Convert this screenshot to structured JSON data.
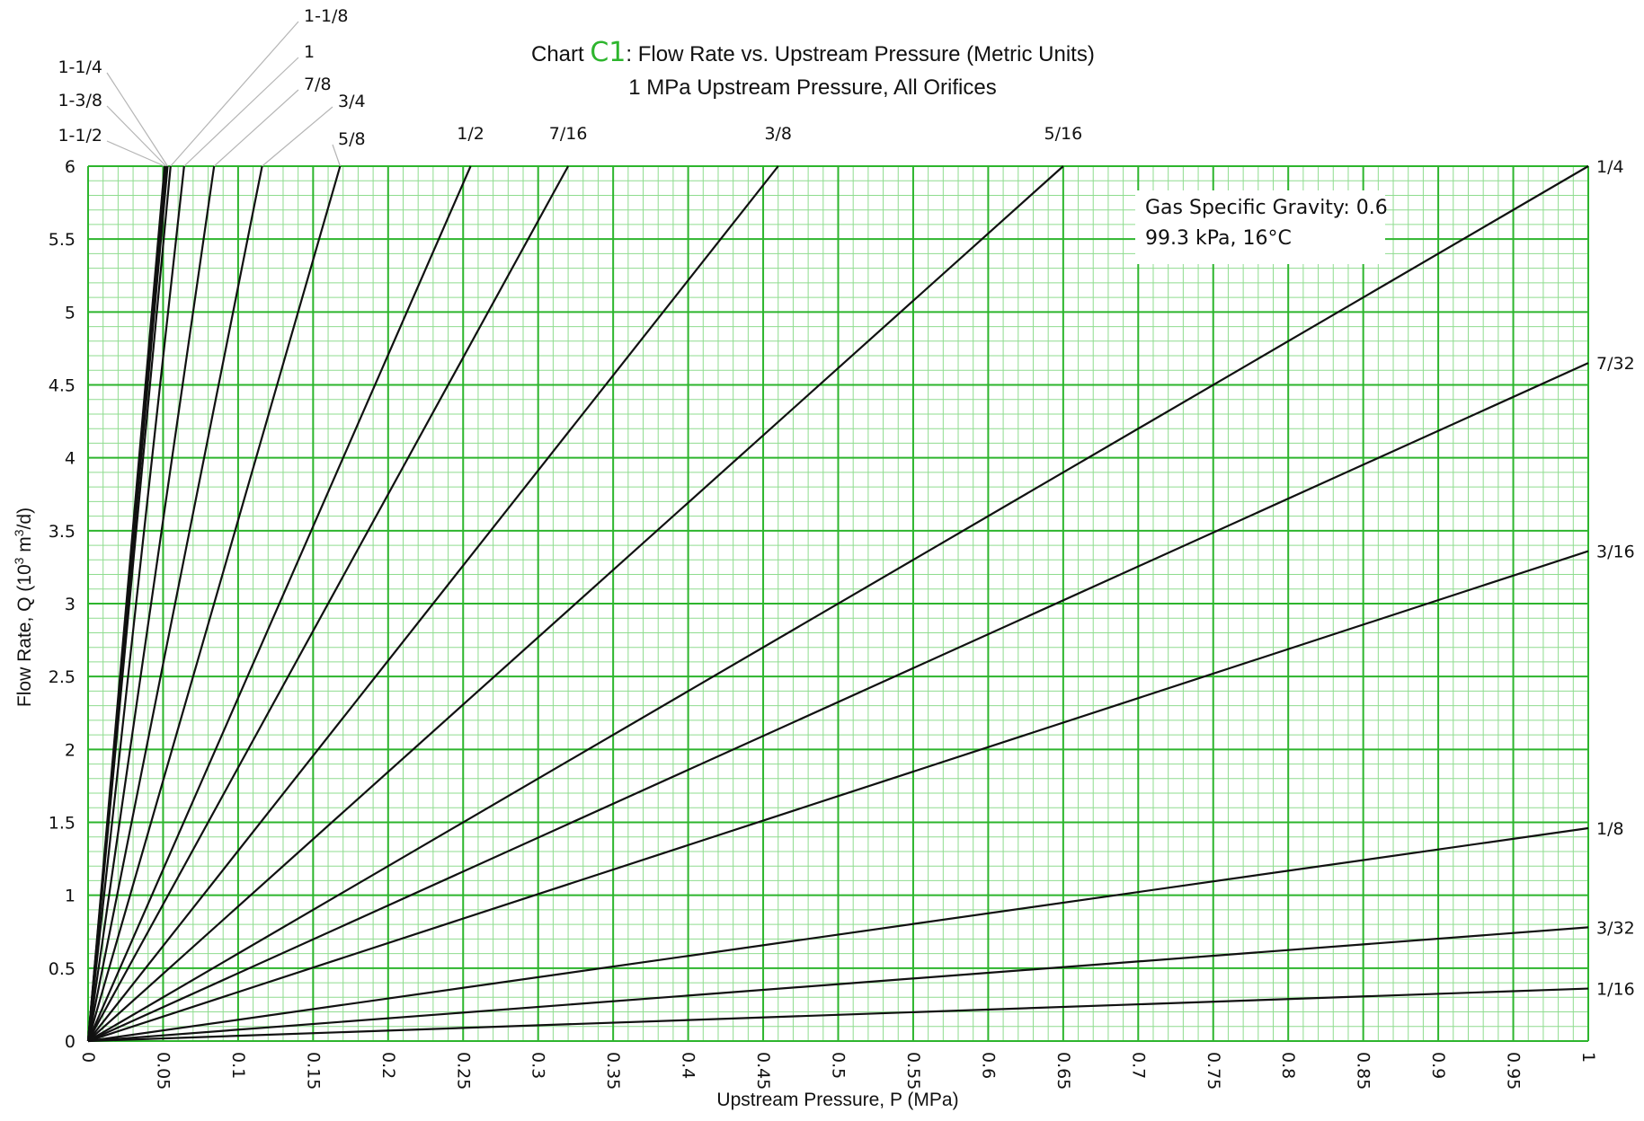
{
  "colors": {
    "grid_major": "#2db52d",
    "grid_minor": "#8fdc8f",
    "title_accent": "#2db52d",
    "curve": "#111111",
    "leader": "#b5b5b5"
  },
  "chart_data": {
    "type": "line",
    "title_prefix": "Chart ",
    "title_accent": "C1",
    "title_suffix": ": Flow Rate vs. Upstream Pressure (Metric Units)",
    "subtitle": "1 MPa Upstream Pressure, All Orifices",
    "xlabel": "Upstream Pressure, P (MPa)",
    "ylabel_main": "Flow Rate, Q (10",
    "ylabel_sup1": "3",
    "ylabel_mid": " m",
    "ylabel_sup2": "3",
    "ylabel_end": "/d)",
    "xlim": [
      0,
      1
    ],
    "ylim": [
      0,
      6
    ],
    "x_ticks": [
      "0",
      "0.05",
      "0.1",
      "0.15",
      "0.2",
      "0.25",
      "0.3",
      "0.35",
      "0.4",
      "0.45",
      "0.5",
      "0.55",
      "0.6",
      "0.65",
      "0.7",
      "0.75",
      "0.8",
      "0.85",
      "0.9",
      "0.95",
      "1"
    ],
    "y_ticks": [
      "0",
      "0.5",
      "1",
      "1.5",
      "2",
      "2.5",
      "3",
      "3.5",
      "4",
      "4.5",
      "5",
      "5.5",
      "6"
    ],
    "grid": true,
    "annotation": {
      "line1": "Gas Specific Gravity: 0.6",
      "line2": "99.3 kPa, 16°C"
    },
    "series": [
      {
        "name": "1/16",
        "x": [
          0,
          1
        ],
        "y": [
          0,
          0.36
        ]
      },
      {
        "name": "3/32",
        "x": [
          0,
          1
        ],
        "y": [
          0,
          0.78
        ]
      },
      {
        "name": "1/8",
        "x": [
          0,
          1
        ],
        "y": [
          0,
          1.46
        ]
      },
      {
        "name": "3/16",
        "x": [
          0,
          1
        ],
        "y": [
          0,
          3.36
        ]
      },
      {
        "name": "7/32",
        "x": [
          0,
          1
        ],
        "y": [
          0,
          4.65
        ]
      },
      {
        "name": "1/4",
        "x": [
          0,
          1
        ],
        "y": [
          0,
          6.0
        ]
      },
      {
        "name": "5/16",
        "x": [
          0,
          0.65
        ],
        "y": [
          0,
          6.0
        ]
      },
      {
        "name": "3/8",
        "x": [
          0,
          0.46
        ],
        "y": [
          0,
          6.0
        ]
      },
      {
        "name": "7/16",
        "x": [
          0,
          0.32
        ],
        "y": [
          0,
          6.0
        ]
      },
      {
        "name": "1/2",
        "x": [
          0,
          0.255
        ],
        "y": [
          0,
          6.0
        ]
      },
      {
        "name": "5/8",
        "x": [
          0,
          0.168
        ],
        "y": [
          0,
          6.0
        ]
      },
      {
        "name": "3/4",
        "x": [
          0,
          0.116
        ],
        "y": [
          0,
          6.0
        ]
      },
      {
        "name": "7/8",
        "x": [
          0,
          0.084
        ],
        "y": [
          0,
          6.0
        ]
      },
      {
        "name": "1",
        "x": [
          0,
          0.064
        ],
        "y": [
          0,
          6.0
        ]
      },
      {
        "name": "1-1/8",
        "x": [
          0,
          0.055
        ],
        "y": [
          0,
          6.0
        ]
      },
      {
        "name": "1-1/4",
        "x": [
          0,
          0.053
        ],
        "y": [
          0,
          6.0
        ]
      },
      {
        "name": "1-3/8",
        "x": [
          0,
          0.052
        ],
        "y": [
          0,
          6.0
        ]
      },
      {
        "name": "1-1/2",
        "x": [
          0,
          0.051
        ],
        "y": [
          0,
          6.0
        ]
      }
    ]
  }
}
